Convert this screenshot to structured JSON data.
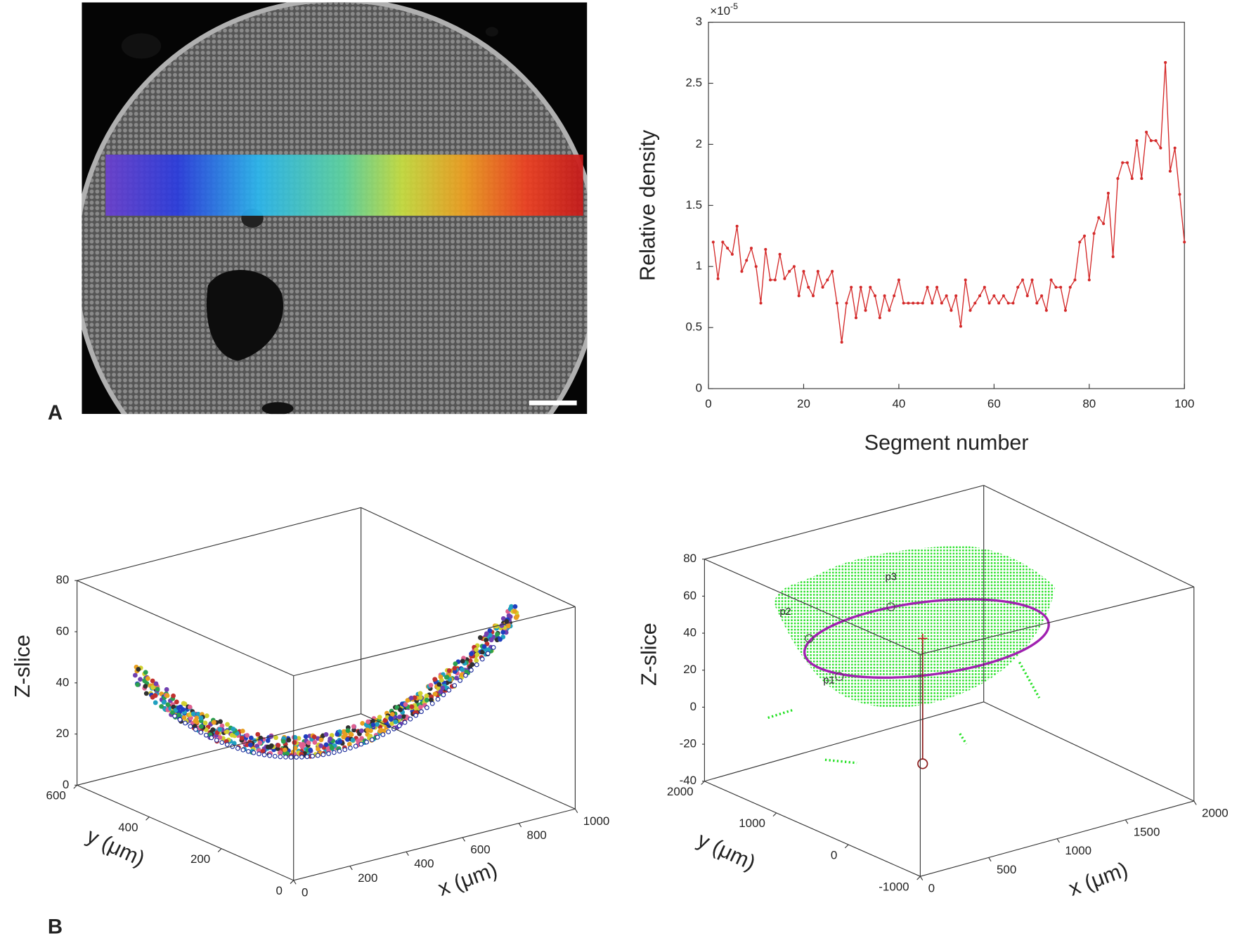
{
  "panel_labels": [
    "A",
    "B"
  ],
  "chart_data": [
    {
      "type": "line",
      "ylabel": "Relative density",
      "xlabel": "Segment number",
      "y_multiplier": {
        "base": "×10",
        "exponent": "-5"
      },
      "color": "#d42a2a",
      "x": [
        1,
        2,
        3,
        4,
        5,
        6,
        7,
        8,
        9,
        10,
        11,
        12,
        13,
        14,
        15,
        16,
        17,
        18,
        19,
        20,
        21,
        22,
        23,
        24,
        25,
        26,
        27,
        28,
        29,
        30,
        31,
        32,
        33,
        34,
        35,
        36,
        37,
        38,
        39,
        40,
        41,
        42,
        43,
        44,
        45,
        46,
        47,
        48,
        49,
        50,
        51,
        52,
        53,
        54,
        55,
        56,
        57,
        58,
        59,
        60,
        61,
        62,
        63,
        64,
        65,
        66,
        67,
        68,
        69,
        70,
        71,
        72,
        73,
        74,
        75,
        76,
        77,
        78,
        79,
        80,
        81,
        82,
        83,
        84,
        85,
        86,
        87,
        88,
        89,
        90,
        91,
        92,
        93,
        94,
        95,
        96,
        97,
        98,
        99,
        100
      ],
      "values": [
        1.2,
        0.9,
        1.2,
        1.15,
        1.1,
        1.33,
        0.96,
        1.05,
        1.15,
        1.0,
        0.7,
        1.14,
        0.89,
        0.89,
        1.1,
        0.9,
        0.96,
        1.0,
        0.76,
        0.96,
        0.83,
        0.76,
        0.96,
        0.83,
        0.89,
        0.96,
        0.7,
        0.38,
        0.7,
        0.83,
        0.58,
        0.83,
        0.64,
        0.83,
        0.76,
        0.58,
        0.76,
        0.64,
        0.76,
        0.89,
        0.7,
        0.7,
        0.7,
        0.7,
        0.7,
        0.83,
        0.7,
        0.83,
        0.7,
        0.76,
        0.64,
        0.76,
        0.51,
        0.89,
        0.64,
        0.7,
        0.76,
        0.83,
        0.7,
        0.76,
        0.7,
        0.76,
        0.7,
        0.7,
        0.83,
        0.89,
        0.76,
        0.89,
        0.7,
        0.76,
        0.64,
        0.89,
        0.83,
        0.83,
        0.64,
        0.83,
        0.89,
        1.2,
        1.25,
        0.89,
        1.27,
        1.4,
        1.35,
        1.6,
        1.08,
        1.72,
        1.85,
        1.85,
        1.72,
        2.03,
        1.72,
        2.1,
        2.03,
        2.03,
        1.97,
        2.67,
        1.78,
        1.97,
        1.59,
        1.2
      ],
      "xlim": [
        0,
        100
      ],
      "xticks": [
        0,
        20,
        40,
        60,
        80,
        100
      ],
      "ylim": [
        0,
        3
      ],
      "yticks": [
        0,
        0.5,
        1,
        1.5,
        2,
        2.5,
        3
      ]
    },
    {
      "type": "scatter3d",
      "zlabel": "Z-slice",
      "ylabel": "y (μm)",
      "xlabel": "x (μm)",
      "xlim": [
        0,
        1000
      ],
      "xticks": [
        0,
        200,
        400,
        600,
        800,
        1000
      ],
      "ylim": [
        0,
        600
      ],
      "yticks": [
        0,
        200,
        400,
        600
      ],
      "zlim": [
        0,
        80
      ],
      "zticks": [
        0,
        20,
        40,
        60,
        80
      ]
    },
    {
      "type": "scatter3d",
      "zlabel": "Z-slice",
      "ylabel": "y (μm)",
      "xlabel": "x (μm)",
      "xlim": [
        0,
        2000
      ],
      "xticks": [
        0,
        500,
        1000,
        1500,
        2000
      ],
      "ylim": [
        -1000,
        2000
      ],
      "yticks": [
        -1000,
        0,
        1000,
        2000
      ],
      "zlim": [
        -40,
        80
      ],
      "zticks": [
        -40,
        -20,
        0,
        20,
        40,
        60,
        80
      ],
      "annotations": [
        "p1",
        "p2",
        "p3"
      ]
    }
  ]
}
